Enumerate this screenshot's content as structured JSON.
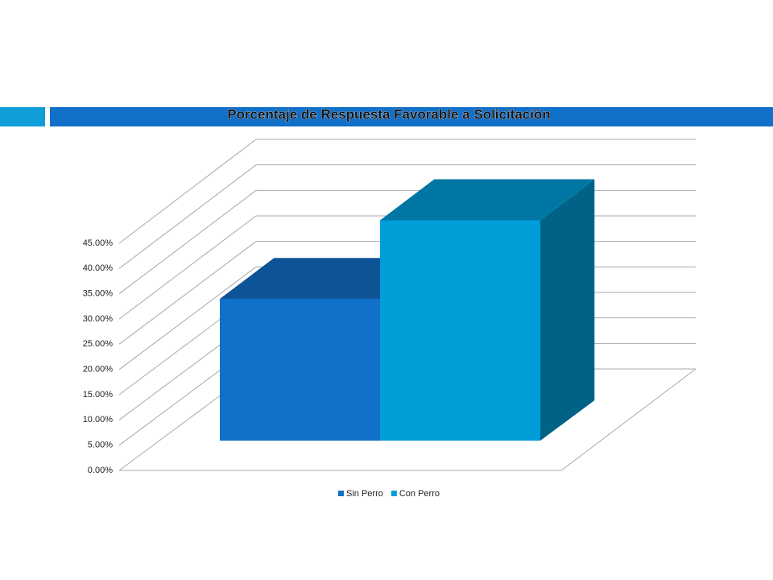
{
  "chart_data": {
    "type": "bar3d",
    "title": "Porcentaje de Respuesta Favorable a Solicitación",
    "categories": [
      null,
      null
    ],
    "series": [
      {
        "name": "Sin Perro",
        "color": "#1170c8",
        "values": [
          28,
          null
        ]
      },
      {
        "name": "Con Perro",
        "color": "#009ed9",
        "values": [
          null,
          43.5
        ]
      }
    ],
    "ylim": [
      0,
      45
    ],
    "yticks": [
      {
        "value": 0,
        "label": "0.00%"
      },
      {
        "value": 5,
        "label": "5.00%"
      },
      {
        "value": 10,
        "label": "10.00%"
      },
      {
        "value": 15,
        "label": "15.00%"
      },
      {
        "value": 20,
        "label": "20.00%"
      },
      {
        "value": 25,
        "label": "25.00%"
      },
      {
        "value": 30,
        "label": "30.00%"
      },
      {
        "value": 35,
        "label": "35.00%"
      },
      {
        "value": 40,
        "label": "40.00%"
      },
      {
        "value": 45,
        "label": "45.00%"
      }
    ],
    "grid": true,
    "legend": "bottom"
  }
}
